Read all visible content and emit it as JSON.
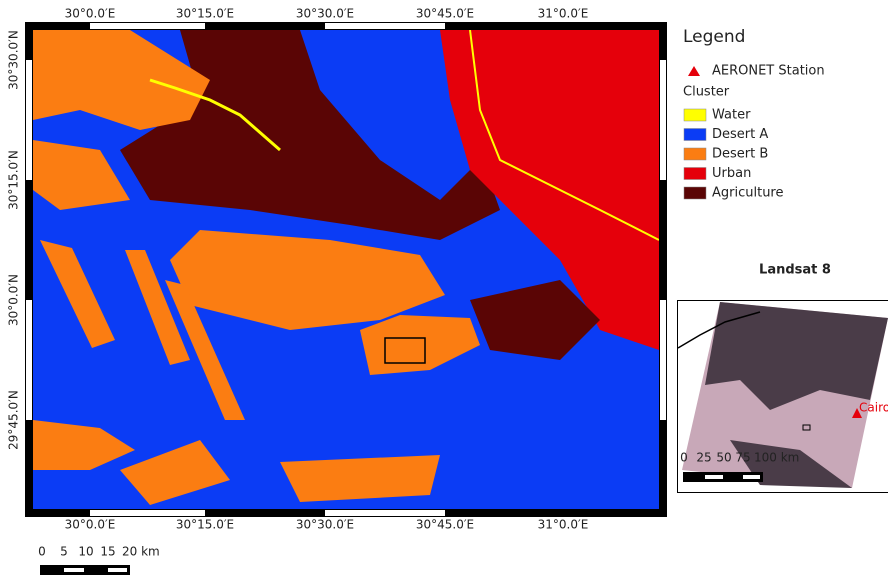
{
  "map": {
    "top_labels": [
      "30°0.0′E",
      "30°15.0′E",
      "30°30.0′E",
      "30°45.0′E",
      "31°0.0′E"
    ],
    "bottom_labels": [
      "30°0.0′E",
      "30°15.0′E",
      "30°30.0′E",
      "30°45.0′E",
      "31°0.0′E"
    ],
    "left_labels": [
      "30°30.0′N",
      "30°15.0′N",
      "30°0.0′N",
      "29°45.0′N"
    ]
  },
  "legend": {
    "title": "Legend",
    "station": "AERONET Station",
    "cluster_heading": "Cluster",
    "items": [
      {
        "label": "Water",
        "color": "#ffff00"
      },
      {
        "label": "Desert A",
        "color": "#0b3cf5"
      },
      {
        "label": "Desert B",
        "color": "#fb7d12"
      },
      {
        "label": "Urban",
        "color": "#e5000b"
      },
      {
        "label": "Agriculture",
        "color": "#5a0505"
      }
    ]
  },
  "scale_bar": {
    "labels": [
      "0",
      "5",
      "10",
      "15",
      "20 km"
    ]
  },
  "inset": {
    "title": "Landsat 8",
    "city": "Cairo",
    "scale_labels": [
      "0",
      "25",
      "50",
      "75",
      "100 km"
    ]
  }
}
